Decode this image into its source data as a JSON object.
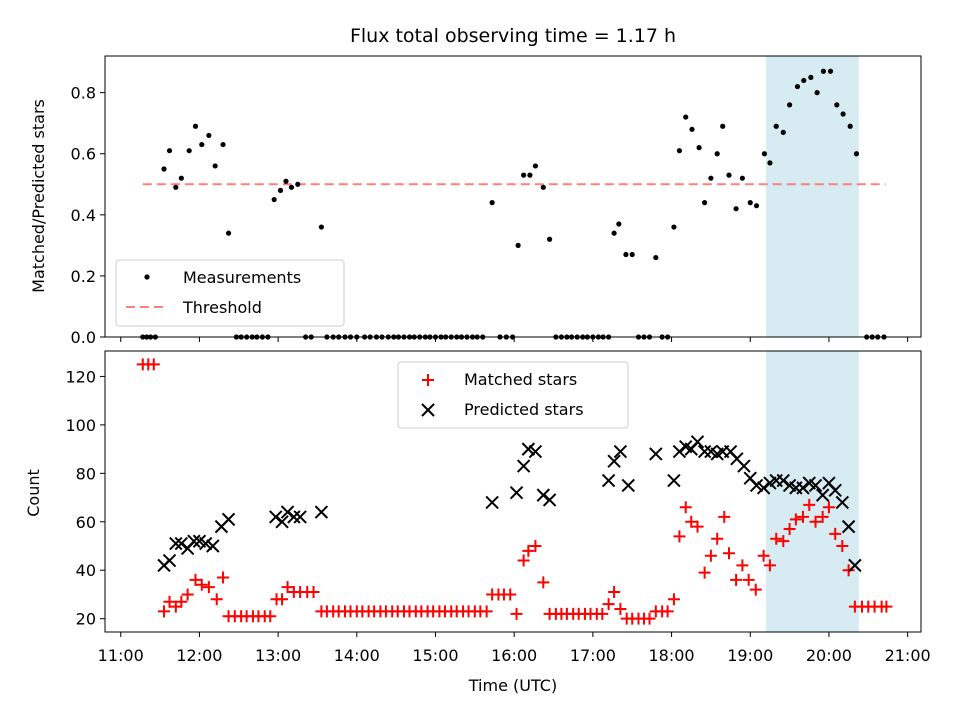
{
  "chart_data": {
    "title": "Flux total observing time = 1.17 h",
    "xlabel": "Time (UTC)",
    "x_unit": "hours UTC",
    "xlim": [
      10.8,
      21.17
    ],
    "x_ticks": [
      {
        "v": 11,
        "label": "11:00"
      },
      {
        "v": 12,
        "label": "12:00"
      },
      {
        "v": 13,
        "label": "13:00"
      },
      {
        "v": 14,
        "label": "14:00"
      },
      {
        "v": 15,
        "label": "15:00"
      },
      {
        "v": 16,
        "label": "16:00"
      },
      {
        "v": 17,
        "label": "17:00"
      },
      {
        "v": 18,
        "label": "18:00"
      },
      {
        "v": 19,
        "label": "19:00"
      },
      {
        "v": 20,
        "label": "20:00"
      },
      {
        "v": 21,
        "label": "21:00"
      }
    ],
    "highlight_span": [
      19.2,
      20.38
    ],
    "highlight_color": "#add8e6",
    "top": {
      "type": "scatter",
      "ylabel": "Matched/Predicted stars",
      "ylim": [
        0,
        0.92
      ],
      "y_ticks": [
        {
          "v": 0,
          "label": "0.0"
        },
        {
          "v": 0.2,
          "label": "0.2"
        },
        {
          "v": 0.4,
          "label": "0.4"
        },
        {
          "v": 0.6,
          "label": "0.6"
        },
        {
          "v": 0.8,
          "label": "0.8"
        }
      ],
      "threshold": {
        "value": 0.5,
        "x_range": [
          11.28,
          20.72
        ],
        "color": "#ff7f7f"
      },
      "legend": [
        {
          "label": "Measurements",
          "kind": "dot"
        },
        {
          "label": "Threshold",
          "kind": "dash"
        }
      ],
      "measurements": [
        [
          11.28,
          0
        ],
        [
          11.33,
          0
        ],
        [
          11.38,
          0
        ],
        [
          11.44,
          0
        ],
        [
          11.55,
          0.55
        ],
        [
          11.62,
          0.61
        ],
        [
          11.7,
          0.49
        ],
        [
          11.77,
          0.52
        ],
        [
          11.87,
          0.61
        ],
        [
          11.95,
          0.69
        ],
        [
          12.03,
          0.63
        ],
        [
          12.12,
          0.66
        ],
        [
          12.2,
          0.56
        ],
        [
          12.3,
          0.63
        ],
        [
          12.37,
          0.34
        ],
        [
          12.47,
          0
        ],
        [
          12.53,
          0
        ],
        [
          12.6,
          0
        ],
        [
          12.67,
          0
        ],
        [
          12.73,
          0
        ],
        [
          12.8,
          0
        ],
        [
          12.87,
          0
        ],
        [
          12.95,
          0.45
        ],
        [
          13.03,
          0.48
        ],
        [
          13.1,
          0.51
        ],
        [
          13.17,
          0.49
        ],
        [
          13.25,
          0.5
        ],
        [
          13.35,
          0
        ],
        [
          13.42,
          0
        ],
        [
          13.55,
          0.36
        ],
        [
          13.62,
          0
        ],
        [
          13.7,
          0
        ],
        [
          13.77,
          0
        ],
        [
          13.85,
          0
        ],
        [
          13.92,
          0
        ],
        [
          14.0,
          0
        ],
        [
          14.1,
          0
        ],
        [
          14.17,
          0
        ],
        [
          14.25,
          0
        ],
        [
          14.32,
          0
        ],
        [
          14.4,
          0
        ],
        [
          14.47,
          0
        ],
        [
          14.53,
          0
        ],
        [
          14.6,
          0
        ],
        [
          14.67,
          0
        ],
        [
          14.73,
          0
        ],
        [
          14.8,
          0
        ],
        [
          14.87,
          0
        ],
        [
          14.93,
          0
        ],
        [
          15.0,
          0
        ],
        [
          15.07,
          0
        ],
        [
          15.13,
          0
        ],
        [
          15.2,
          0
        ],
        [
          15.27,
          0
        ],
        [
          15.33,
          0
        ],
        [
          15.4,
          0
        ],
        [
          15.47,
          0
        ],
        [
          15.53,
          0
        ],
        [
          15.6,
          0
        ],
        [
          15.72,
          0.44
        ],
        [
          15.82,
          0
        ],
        [
          15.9,
          0
        ],
        [
          15.98,
          0
        ],
        [
          16.05,
          0.3
        ],
        [
          16.12,
          0.53
        ],
        [
          16.2,
          0.53
        ],
        [
          16.27,
          0.56
        ],
        [
          16.37,
          0.49
        ],
        [
          16.45,
          0.32
        ],
        [
          16.53,
          0
        ],
        [
          16.6,
          0
        ],
        [
          16.67,
          0
        ],
        [
          16.73,
          0
        ],
        [
          16.8,
          0
        ],
        [
          16.87,
          0
        ],
        [
          16.93,
          0
        ],
        [
          17.0,
          0
        ],
        [
          17.07,
          0
        ],
        [
          17.13,
          0
        ],
        [
          17.2,
          0
        ],
        [
          17.27,
          0.34
        ],
        [
          17.33,
          0.37
        ],
        [
          17.42,
          0.27
        ],
        [
          17.5,
          0.27
        ],
        [
          17.58,
          0
        ],
        [
          17.65,
          0
        ],
        [
          17.72,
          0
        ],
        [
          17.8,
          0.26
        ],
        [
          17.88,
          0
        ],
        [
          17.95,
          0
        ],
        [
          18.03,
          0.36
        ],
        [
          18.1,
          0.61
        ],
        [
          18.18,
          0.72
        ],
        [
          18.26,
          0.68
        ],
        [
          18.35,
          0.62
        ],
        [
          18.42,
          0.44
        ],
        [
          18.5,
          0.52
        ],
        [
          18.58,
          0.6
        ],
        [
          18.65,
          0.69
        ],
        [
          18.73,
          0.53
        ],
        [
          18.82,
          0.42
        ],
        [
          18.9,
          0.52
        ],
        [
          19.0,
          0.44
        ],
        [
          19.08,
          0.43
        ],
        [
          19.18,
          0.6
        ],
        [
          19.25,
          0.57
        ],
        [
          19.33,
          0.69
        ],
        [
          19.42,
          0.67
        ],
        [
          19.5,
          0.76
        ],
        [
          19.6,
          0.82
        ],
        [
          19.68,
          0.84
        ],
        [
          19.77,
          0.85
        ],
        [
          19.85,
          0.8
        ],
        [
          19.93,
          0.87
        ],
        [
          20.02,
          0.87
        ],
        [
          20.1,
          0.76
        ],
        [
          20.18,
          0.73
        ],
        [
          20.27,
          0.69
        ],
        [
          20.35,
          0.6
        ],
        [
          20.48,
          0
        ],
        [
          20.55,
          0
        ],
        [
          20.62,
          0
        ],
        [
          20.7,
          0
        ]
      ]
    },
    "bottom": {
      "type": "scatter",
      "ylabel": "Count",
      "ylim": [
        14.5,
        130.5
      ],
      "y_ticks": [
        {
          "v": 20,
          "label": "20"
        },
        {
          "v": 40,
          "label": "40"
        },
        {
          "v": 60,
          "label": "60"
        },
        {
          "v": 80,
          "label": "80"
        },
        {
          "v": 100,
          "label": "100"
        },
        {
          "v": 120,
          "label": "120"
        }
      ],
      "legend": [
        {
          "label": "Matched stars",
          "kind": "plus"
        },
        {
          "label": "Predicted stars",
          "kind": "x"
        }
      ],
      "matched": [
        [
          11.28,
          125
        ],
        [
          11.35,
          125
        ],
        [
          11.42,
          125
        ],
        [
          11.55,
          23
        ],
        [
          11.62,
          27
        ],
        [
          11.7,
          25
        ],
        [
          11.77,
          27
        ],
        [
          11.85,
          30
        ],
        [
          11.95,
          36
        ],
        [
          12.03,
          34
        ],
        [
          12.12,
          33
        ],
        [
          12.22,
          28
        ],
        [
          12.3,
          37
        ],
        [
          12.37,
          21
        ],
        [
          12.45,
          21
        ],
        [
          12.53,
          21
        ],
        [
          12.6,
          21
        ],
        [
          12.68,
          21
        ],
        [
          12.75,
          21
        ],
        [
          12.83,
          21
        ],
        [
          12.9,
          21
        ],
        [
          12.98,
          28
        ],
        [
          13.05,
          28
        ],
        [
          13.12,
          33
        ],
        [
          13.2,
          31
        ],
        [
          13.28,
          31
        ],
        [
          13.37,
          31
        ],
        [
          13.45,
          31
        ],
        [
          13.55,
          23
        ],
        [
          13.62,
          23
        ],
        [
          13.7,
          23
        ],
        [
          13.77,
          23
        ],
        [
          13.85,
          23
        ],
        [
          13.92,
          23
        ],
        [
          14.0,
          23
        ],
        [
          14.07,
          23
        ],
        [
          14.15,
          23
        ],
        [
          14.22,
          23
        ],
        [
          14.3,
          23
        ],
        [
          14.37,
          23
        ],
        [
          14.45,
          23
        ],
        [
          14.52,
          23
        ],
        [
          14.6,
          23
        ],
        [
          14.67,
          23
        ],
        [
          14.75,
          23
        ],
        [
          14.82,
          23
        ],
        [
          14.9,
          23
        ],
        [
          14.97,
          23
        ],
        [
          15.05,
          23
        ],
        [
          15.12,
          23
        ],
        [
          15.2,
          23
        ],
        [
          15.27,
          23
        ],
        [
          15.35,
          23
        ],
        [
          15.42,
          23
        ],
        [
          15.5,
          23
        ],
        [
          15.57,
          23
        ],
        [
          15.65,
          23
        ],
        [
          15.72,
          30
        ],
        [
          15.8,
          30
        ],
        [
          15.87,
          30
        ],
        [
          15.95,
          30
        ],
        [
          16.03,
          22
        ],
        [
          16.12,
          44
        ],
        [
          16.18,
          48
        ],
        [
          16.27,
          50
        ],
        [
          16.37,
          35
        ],
        [
          16.45,
          22
        ],
        [
          16.53,
          22
        ],
        [
          16.6,
          22
        ],
        [
          16.67,
          22
        ],
        [
          16.75,
          22
        ],
        [
          16.82,
          22
        ],
        [
          16.9,
          22
        ],
        [
          16.97,
          22
        ],
        [
          17.05,
          22
        ],
        [
          17.12,
          22
        ],
        [
          17.2,
          26
        ],
        [
          17.27,
          31
        ],
        [
          17.35,
          24
        ],
        [
          17.43,
          20
        ],
        [
          17.5,
          20
        ],
        [
          17.58,
          20
        ],
        [
          17.65,
          20
        ],
        [
          17.72,
          20
        ],
        [
          17.8,
          23
        ],
        [
          17.88,
          23
        ],
        [
          17.95,
          23
        ],
        [
          18.03,
          28
        ],
        [
          18.1,
          54
        ],
        [
          18.18,
          66
        ],
        [
          18.25,
          60
        ],
        [
          18.33,
          58
        ],
        [
          18.42,
          39
        ],
        [
          18.5,
          46
        ],
        [
          18.58,
          53
        ],
        [
          18.67,
          62
        ],
        [
          18.73,
          47
        ],
        [
          18.82,
          36
        ],
        [
          18.9,
          42
        ],
        [
          18.98,
          36
        ],
        [
          19.07,
          32
        ],
        [
          19.17,
          46
        ],
        [
          19.25,
          42
        ],
        [
          19.33,
          53
        ],
        [
          19.42,
          52
        ],
        [
          19.5,
          57
        ],
        [
          19.58,
          61
        ],
        [
          19.67,
          62
        ],
        [
          19.75,
          67
        ],
        [
          19.83,
          60
        ],
        [
          19.92,
          62
        ],
        [
          20.0,
          66
        ],
        [
          20.08,
          55
        ],
        [
          20.17,
          50
        ],
        [
          20.25,
          40
        ],
        [
          20.33,
          25
        ],
        [
          20.42,
          25
        ],
        [
          20.5,
          25
        ],
        [
          20.58,
          25
        ],
        [
          20.67,
          25
        ],
        [
          20.73,
          25
        ]
      ],
      "predicted": [
        [
          11.55,
          42
        ],
        [
          11.62,
          44
        ],
        [
          11.7,
          51
        ],
        [
          11.77,
          51
        ],
        [
          11.85,
          49
        ],
        [
          11.93,
          52
        ],
        [
          12.0,
          52
        ],
        [
          12.08,
          51
        ],
        [
          12.17,
          50
        ],
        [
          12.28,
          58
        ],
        [
          12.37,
          61
        ],
        [
          12.97,
          62
        ],
        [
          13.05,
          60
        ],
        [
          13.12,
          64
        ],
        [
          13.2,
          62
        ],
        [
          13.28,
          62
        ],
        [
          13.55,
          64
        ],
        [
          15.72,
          68
        ],
        [
          16.03,
          72
        ],
        [
          16.12,
          83
        ],
        [
          16.18,
          90
        ],
        [
          16.27,
          89
        ],
        [
          16.37,
          71
        ],
        [
          16.45,
          69
        ],
        [
          17.2,
          77
        ],
        [
          17.27,
          85
        ],
        [
          17.35,
          89
        ],
        [
          17.45,
          75
        ],
        [
          17.8,
          88
        ],
        [
          18.03,
          77
        ],
        [
          18.1,
          89
        ],
        [
          18.18,
          91
        ],
        [
          18.25,
          90
        ],
        [
          18.33,
          93
        ],
        [
          18.42,
          89
        ],
        [
          18.5,
          89
        ],
        [
          18.58,
          88
        ],
        [
          18.65,
          89
        ],
        [
          18.75,
          89
        ],
        [
          18.83,
          86
        ],
        [
          18.92,
          83
        ],
        [
          19.0,
          78
        ],
        [
          19.08,
          75
        ],
        [
          19.17,
          74
        ],
        [
          19.25,
          76
        ],
        [
          19.33,
          77
        ],
        [
          19.42,
          77
        ],
        [
          19.5,
          75
        ],
        [
          19.58,
          74
        ],
        [
          19.67,
          74
        ],
        [
          19.75,
          76
        ],
        [
          19.83,
          75
        ],
        [
          19.92,
          71
        ],
        [
          20.0,
          76
        ],
        [
          20.08,
          73
        ],
        [
          20.17,
          68
        ],
        [
          20.25,
          58
        ],
        [
          20.33,
          42
        ]
      ]
    }
  }
}
